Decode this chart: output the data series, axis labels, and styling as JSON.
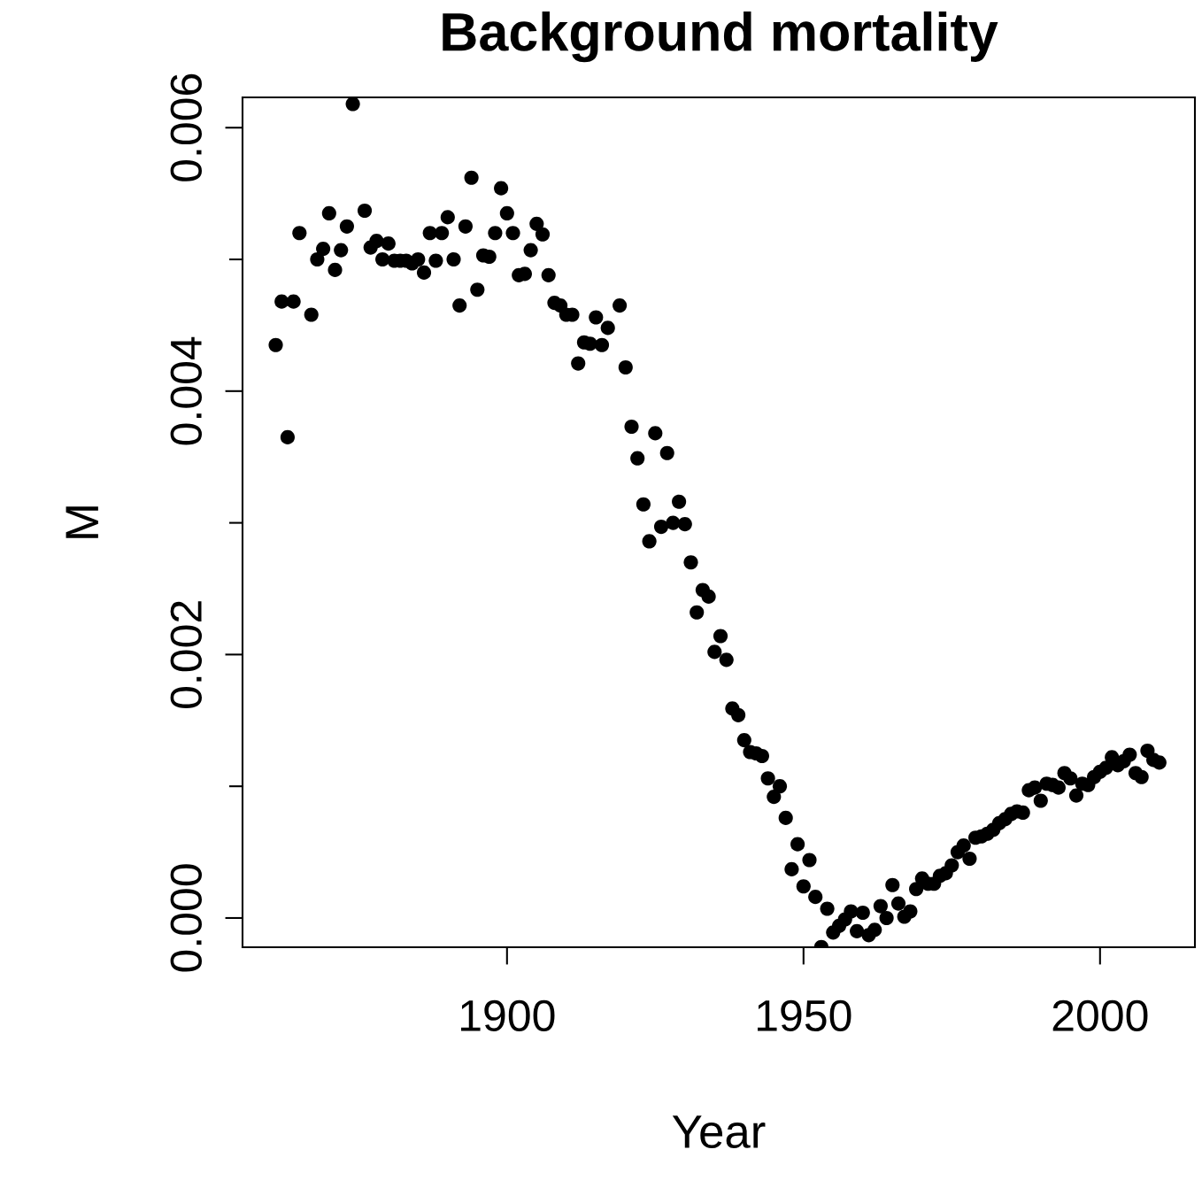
{
  "chart_data": {
    "type": "scatter",
    "title": "Background mortality",
    "xlabel": "Year",
    "ylabel": "M",
    "x": [
      1861,
      1862,
      1863,
      1864,
      1865,
      1867,
      1868,
      1869,
      1870,
      1871,
      1872,
      1873,
      1874,
      1876,
      1877,
      1878,
      1879,
      1880,
      1881,
      1882,
      1883,
      1884,
      1885,
      1886,
      1887,
      1888,
      1889,
      1890,
      1891,
      1892,
      1893,
      1894,
      1895,
      1896,
      1897,
      1898,
      1899,
      1900,
      1901,
      1902,
      1903,
      1904,
      1905,
      1906,
      1907,
      1908,
      1909,
      1910,
      1911,
      1912,
      1913,
      1914,
      1915,
      1916,
      1917,
      1919,
      1920,
      1921,
      1922,
      1923,
      1924,
      1925,
      1926,
      1927,
      1928,
      1929,
      1930,
      1931,
      1932,
      1933,
      1934,
      1935,
      1936,
      1937,
      1938,
      1939,
      1940,
      1941,
      1942,
      1943,
      1944,
      1945,
      1946,
      1947,
      1948,
      1949,
      1950,
      1951,
      1952,
      1953,
      1954,
      1955,
      1956,
      1957,
      1958,
      1959,
      1960,
      1961,
      1962,
      1963,
      1964,
      1965,
      1966,
      1967,
      1968,
      1969,
      1970,
      1971,
      1972,
      1973,
      1974,
      1975,
      1976,
      1977,
      1978,
      1979,
      1980,
      1981,
      1982,
      1983,
      1984,
      1985,
      1986,
      1987,
      1988,
      1989,
      1990,
      1991,
      1992,
      1993,
      1994,
      1995,
      1996,
      1997,
      1998,
      1999,
      2000,
      2001,
      2002,
      2003,
      2004,
      2005,
      2006,
      2007,
      2008,
      2009,
      2010
    ],
    "values": [
      0.00435,
      0.00468,
      0.00365,
      0.00468,
      0.0052,
      0.00458,
      0.005,
      0.00508,
      0.00535,
      0.00492,
      0.00507,
      0.00525,
      0.00618,
      0.00537,
      0.00509,
      0.00514,
      0.005,
      0.00512,
      0.00499,
      0.00499,
      0.00499,
      0.00497,
      0.005,
      0.0049,
      0.0052,
      0.00499,
      0.0052,
      0.00532,
      0.005,
      0.00465,
      0.00525,
      0.00562,
      0.00477,
      0.00503,
      0.00502,
      0.0052,
      0.00554,
      0.00535,
      0.0052,
      0.00488,
      0.00489,
      0.00507,
      0.00527,
      0.00519,
      0.00488,
      0.00467,
      0.00465,
      0.00458,
      0.00458,
      0.00421,
      0.00437,
      0.00436,
      0.00456,
      0.00435,
      0.00448,
      0.00465,
      0.00418,
      0.00373,
      0.00349,
      0.00314,
      0.00286,
      0.00368,
      0.00297,
      0.00353,
      0.003,
      0.00316,
      0.00299,
      0.0027,
      0.00232,
      0.00249,
      0.00244,
      0.00202,
      0.00214,
      0.00196,
      0.00159,
      0.00154,
      0.00135,
      0.00126,
      0.00125,
      0.00123,
      0.00106,
      0.00092,
      0.001,
      0.00076,
      0.00037,
      0.00056,
      0.00024,
      0.00044,
      0.00016,
      -0.00022,
      7e-05,
      -0.00011,
      -6e-05,
      -1e-05,
      5e-05,
      -0.0001,
      4e-05,
      -0.00013,
      -9e-05,
      9e-05,
      0.0,
      0.00025,
      0.00011,
      1e-05,
      5e-05,
      0.00022,
      0.0003,
      0.00026,
      0.00026,
      0.00032,
      0.00034,
      0.0004,
      0.0005,
      0.00055,
      0.00045,
      0.00061,
      0.00062,
      0.00064,
      0.00067,
      0.00072,
      0.00075,
      0.00079,
      0.00081,
      0.0008,
      0.00097,
      0.00099,
      0.00089,
      0.00102,
      0.00101,
      0.00099,
      0.0011,
      0.00106,
      0.00093,
      0.00102,
      0.00101,
      0.00107,
      0.00111,
      0.00114,
      0.00122,
      0.00116,
      0.00119,
      0.00124,
      0.0011,
      0.00107,
      0.00127,
      0.0012,
      0.00118
    ],
    "color": "#000000",
    "marker": "circle",
    "xlim": [
      1855.4,
      2016.0
    ],
    "ylim": [
      -0.000222,
      0.00623
    ],
    "xticks": [
      1900,
      1950,
      2000
    ],
    "yticks": [
      {
        "value": 0.0,
        "label": "0.000"
      },
      {
        "value": 0.001,
        "label": null
      },
      {
        "value": 0.002,
        "label": "0.002"
      },
      {
        "value": 0.003,
        "label": null
      },
      {
        "value": 0.004,
        "label": "0.004"
      },
      {
        "value": 0.005,
        "label": null
      },
      {
        "value": 0.006,
        "label": "0.006"
      }
    ],
    "grid": false,
    "legend": false
  }
}
